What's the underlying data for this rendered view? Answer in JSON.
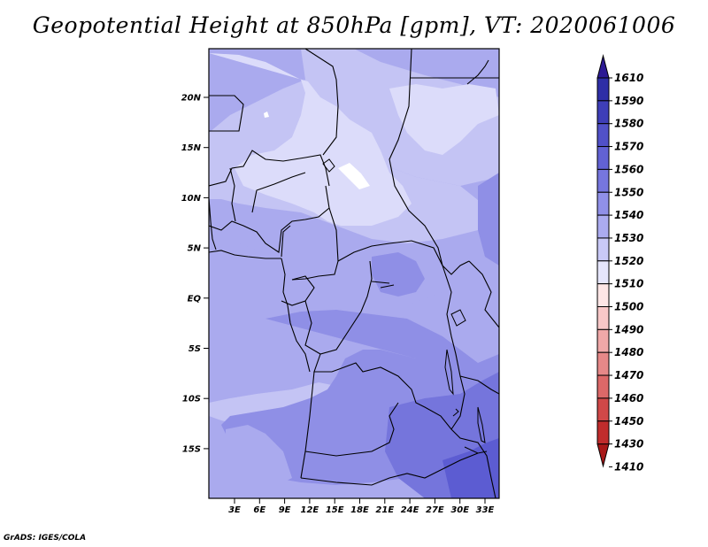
{
  "title": "Geopotential Height at 850hPa [gpm], VT: 2020061006",
  "credit": "GrADS: IGES/COLA",
  "map": {
    "lat_labels": [
      "20N",
      "15N",
      "10N",
      "5N",
      "EQ",
      "5S",
      "10S",
      "15S"
    ],
    "lon_labels": [
      "3E",
      "6E",
      "9E",
      "12E",
      "15E",
      "18E",
      "21E",
      "24E",
      "27E",
      "30E",
      "33E"
    ],
    "colors": {
      "c1510": "#ffffff",
      "c1520": "#dcdcfa",
      "c1530": "#c4c4f4",
      "c1540": "#aaaaee",
      "c1550": "#8f8fe6",
      "c1560": "#7575dc",
      "c1570": "#5c5cd2"
    }
  },
  "colorbar": {
    "labels": [
      "1610",
      "1590",
      "1580",
      "1570",
      "1560",
      "1550",
      "1540",
      "1530",
      "1520",
      "1510",
      "1500",
      "1490",
      "1480",
      "1470",
      "1460",
      "1450",
      "1430",
      "1410"
    ],
    "colors": [
      "#2c1a94",
      "#2e2ea6",
      "#3e3eb8",
      "#5151c8",
      "#6262d4",
      "#7676de",
      "#9090e8",
      "#ababf0",
      "#c9c9f7",
      "#e6e6fc",
      "#fde6e6",
      "#f8c8c8",
      "#f0a8a8",
      "#e68888",
      "#dc6868",
      "#d04848",
      "#c02c2c",
      "#a81818"
    ]
  }
}
